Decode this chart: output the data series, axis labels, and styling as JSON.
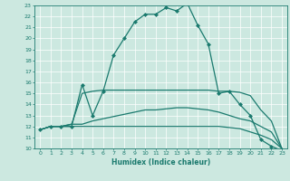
{
  "xlabel": "Humidex (Indice chaleur)",
  "bg_color": "#cce8e0",
  "grid_color": "#ffffff",
  "line_color": "#1a7a6e",
  "xlim": [
    -0.5,
    23.5
  ],
  "ylim": [
    10,
    23
  ],
  "xticks": [
    0,
    1,
    2,
    3,
    4,
    5,
    6,
    7,
    8,
    9,
    10,
    11,
    12,
    13,
    14,
    15,
    16,
    17,
    18,
    19,
    20,
    21,
    22,
    23
  ],
  "yticks": [
    10,
    11,
    12,
    13,
    14,
    15,
    16,
    17,
    18,
    19,
    20,
    21,
    22,
    23
  ],
  "series": [
    {
      "x": [
        0,
        1,
        2,
        3,
        4,
        5,
        6,
        7,
        8,
        9,
        10,
        11,
        12,
        13,
        14,
        15,
        16,
        17,
        18,
        19,
        20,
        21,
        22,
        23
      ],
      "y": [
        11.7,
        12.0,
        12.0,
        12.0,
        15.8,
        13.0,
        15.2,
        18.5,
        20.0,
        21.5,
        22.2,
        22.2,
        22.8,
        22.5,
        23.2,
        21.2,
        19.5,
        15.0,
        15.2,
        14.0,
        13.0,
        10.8,
        10.2,
        9.8
      ],
      "marker": "D",
      "markersize": 2.0,
      "linewidth": 0.9
    },
    {
      "x": [
        0,
        1,
        2,
        3,
        4,
        5,
        6,
        7,
        8,
        9,
        10,
        11,
        12,
        13,
        14,
        15,
        16,
        17,
        18,
        19,
        20,
        21,
        22,
        23
      ],
      "y": [
        11.7,
        12.0,
        12.0,
        12.2,
        15.0,
        15.2,
        15.3,
        15.3,
        15.3,
        15.3,
        15.3,
        15.3,
        15.3,
        15.3,
        15.3,
        15.3,
        15.3,
        15.2,
        15.2,
        15.1,
        14.8,
        13.5,
        12.5,
        10.0
      ],
      "marker": null,
      "linewidth": 0.9
    },
    {
      "x": [
        0,
        1,
        2,
        3,
        4,
        5,
        6,
        7,
        8,
        9,
        10,
        11,
        12,
        13,
        14,
        15,
        16,
        17,
        18,
        19,
        20,
        21,
        22,
        23
      ],
      "y": [
        11.7,
        12.0,
        12.0,
        12.2,
        12.2,
        12.5,
        12.7,
        12.9,
        13.1,
        13.3,
        13.5,
        13.5,
        13.6,
        13.7,
        13.7,
        13.6,
        13.5,
        13.3,
        13.0,
        12.7,
        12.5,
        12.0,
        11.5,
        10.0
      ],
      "marker": null,
      "linewidth": 0.9
    },
    {
      "x": [
        0,
        1,
        2,
        3,
        4,
        5,
        6,
        7,
        8,
        9,
        10,
        11,
        12,
        13,
        14,
        15,
        16,
        17,
        18,
        19,
        20,
        21,
        22,
        23
      ],
      "y": [
        11.7,
        12.0,
        12.0,
        12.0,
        12.0,
        12.0,
        12.0,
        12.0,
        12.0,
        12.0,
        12.0,
        12.0,
        12.0,
        12.0,
        12.0,
        12.0,
        12.0,
        12.0,
        11.9,
        11.8,
        11.5,
        11.2,
        10.8,
        10.0
      ],
      "marker": null,
      "linewidth": 0.9
    }
  ]
}
